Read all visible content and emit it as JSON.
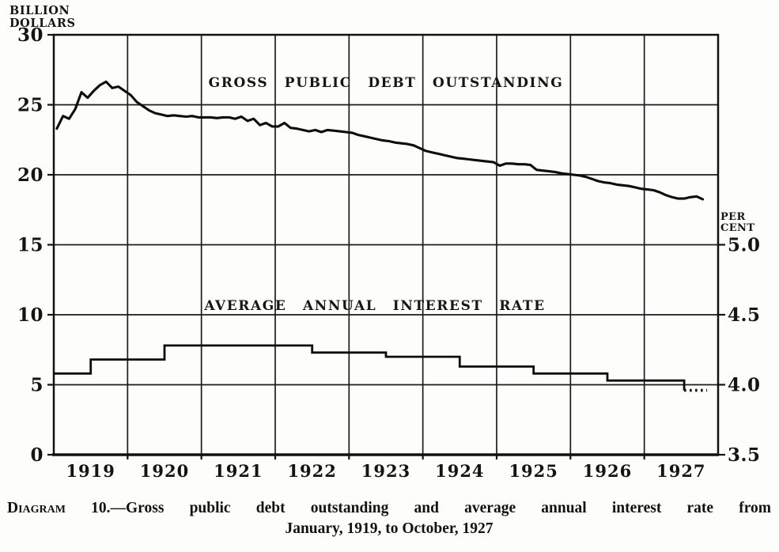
{
  "page": {
    "background": "#fdfdfb",
    "ink": "#161412"
  },
  "caption": {
    "label": "Diagram",
    "rest": " 10.—Gross public debt outstanding and average annual interest rate from",
    "line2": "January, 1919, to October, 1927"
  },
  "chart_data": {
    "type": "line",
    "title": "Diagram 10. Gross public debt outstanding and average annual interest rate, January 1919 to October 1927",
    "grid": "on",
    "series_labels": {
      "debt": "GROSS PUBLIC DEBT OUTSTANDING",
      "rate": "AVERAGE ANNUAL INTEREST RATE"
    },
    "left_axis": {
      "unit_line1": "BILLION",
      "unit_line2": "DOLLARS",
      "ticks": [
        30,
        25,
        20,
        15,
        10,
        5,
        0
      ],
      "min": 0,
      "max": 30
    },
    "right_axis": {
      "unit_line1": "PER",
      "unit_line2": "CENT",
      "ticks": [
        "5.0",
        "4.5",
        "4.0",
        "3.5"
      ],
      "tick_values": [
        5.0,
        4.5,
        4.0,
        3.5
      ],
      "note": "3.5 percent aligns with 0 billion; each 0.5 percent spans 5 billion"
    },
    "x_axis": {
      "year_labels": [
        "1919",
        "1920",
        "1921",
        "1922",
        "1923",
        "1924",
        "1925",
        "1926",
        "1927"
      ],
      "start_year": 1919,
      "end_year_fraction": 1928
    },
    "debt_series": {
      "name": "Gross public debt outstanding",
      "unit": "billion dollars",
      "start": "1919-01",
      "end": "1927-10",
      "monthly_values": [
        23.3,
        24.2,
        24.0,
        24.7,
        25.9,
        25.5,
        26.0,
        26.4,
        26.65,
        26.2,
        26.3,
        26.0,
        25.7,
        25.2,
        24.9,
        24.6,
        24.4,
        24.3,
        24.2,
        24.25,
        24.2,
        24.15,
        24.2,
        24.1,
        24.1,
        24.1,
        24.05,
        24.1,
        24.1,
        24.0,
        24.15,
        23.85,
        24.0,
        23.55,
        23.7,
        23.45,
        23.45,
        23.7,
        23.35,
        23.3,
        23.2,
        23.1,
        23.2,
        23.05,
        23.2,
        23.15,
        23.1,
        23.05,
        23.0,
        22.85,
        22.75,
        22.65,
        22.55,
        22.45,
        22.4,
        22.3,
        22.25,
        22.2,
        22.1,
        21.9,
        21.7,
        21.6,
        21.5,
        21.4,
        21.3,
        21.2,
        21.15,
        21.1,
        21.05,
        21.0,
        20.95,
        20.9,
        20.65,
        20.8,
        20.8,
        20.75,
        20.75,
        20.7,
        20.35,
        20.3,
        20.25,
        20.2,
        20.1,
        20.05,
        20.0,
        19.95,
        19.85,
        19.7,
        19.55,
        19.45,
        19.4,
        19.3,
        19.25,
        19.2,
        19.1,
        19.0,
        18.95,
        18.9,
        18.75,
        18.55,
        18.4,
        18.3,
        18.3,
        18.4,
        18.45,
        18.25
      ]
    },
    "rate_series": {
      "name": "Average annual interest rate",
      "unit": "percent",
      "segments": [
        {
          "from": 1919.0,
          "to": 1919.5,
          "value": 4.08,
          "style": "solid"
        },
        {
          "from": 1919.5,
          "to": 1920.5,
          "value": 4.18,
          "style": "solid"
        },
        {
          "from": 1920.5,
          "to": 1922.5,
          "value": 4.28,
          "style": "solid"
        },
        {
          "from": 1922.5,
          "to": 1923.5,
          "value": 4.23,
          "style": "solid"
        },
        {
          "from": 1923.5,
          "to": 1924.5,
          "value": 4.2,
          "style": "solid"
        },
        {
          "from": 1924.5,
          "to": 1925.5,
          "value": 4.13,
          "style": "solid"
        },
        {
          "from": 1925.5,
          "to": 1926.5,
          "value": 4.08,
          "style": "solid"
        },
        {
          "from": 1926.5,
          "to": 1927.54,
          "value": 4.03,
          "style": "solid"
        },
        {
          "from": 1927.54,
          "to": 1927.85,
          "value": 3.96,
          "style": "dotted"
        }
      ]
    }
  }
}
